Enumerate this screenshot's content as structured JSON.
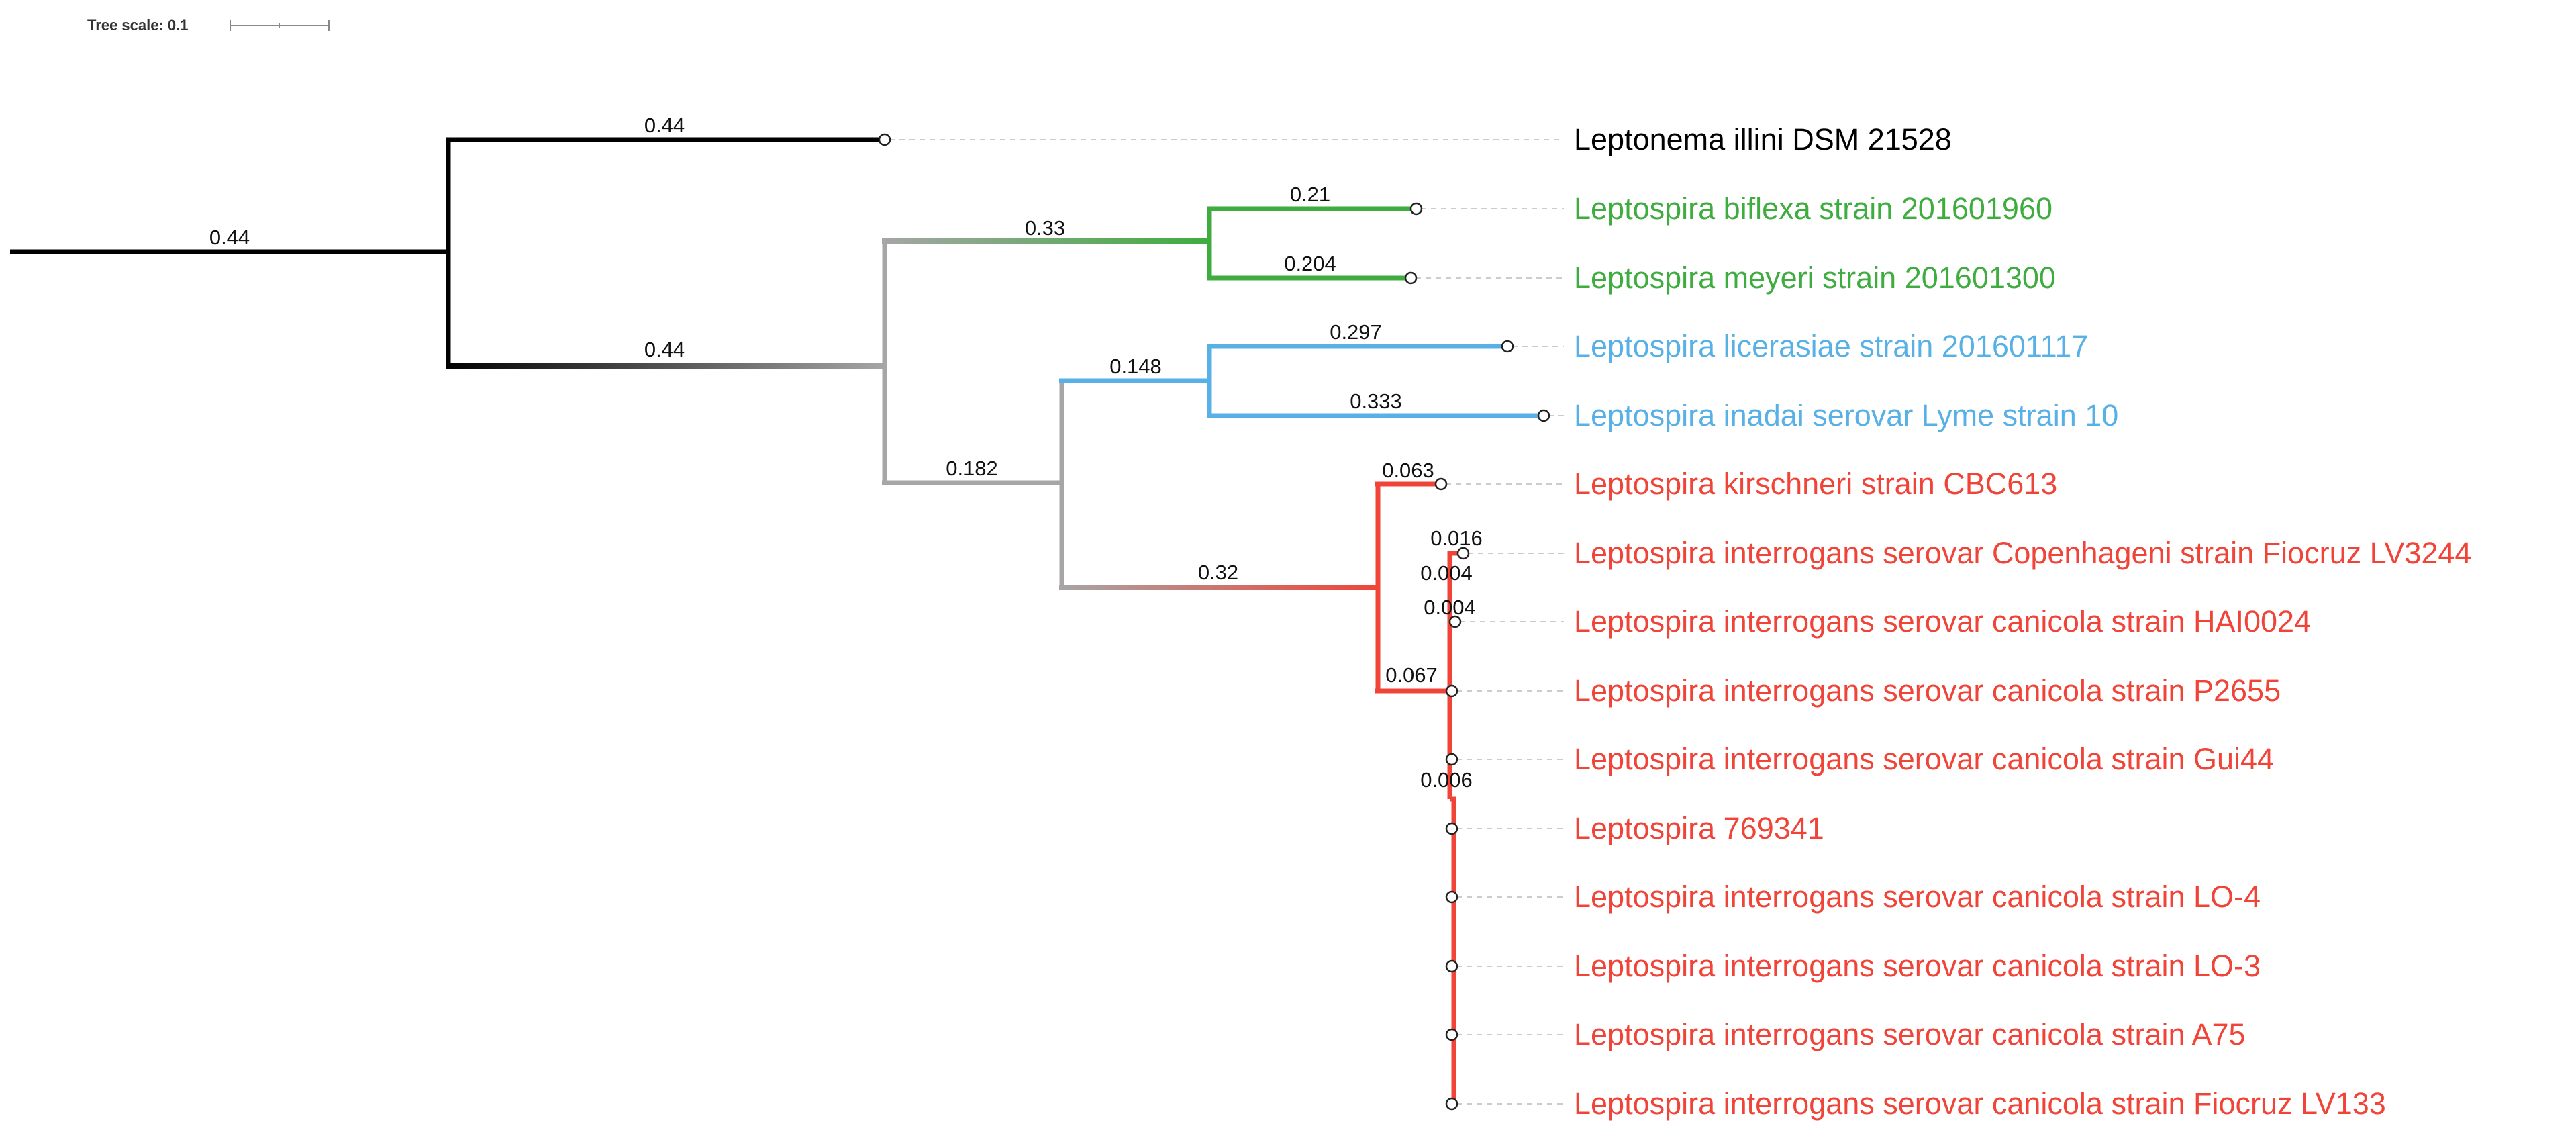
{
  "scale": {
    "label": "Tree scale: 0.1"
  },
  "colors": {
    "outgroup": "#000000",
    "green": "#3eac3e",
    "blue": "#57b0e6",
    "red": "#f04438",
    "gray": "#a6a6a6"
  },
  "branch_labels": {
    "root": "0.44",
    "outgroup": "0.44",
    "ingroup": "0.44",
    "green_clade": "0.33",
    "biflexa": "0.21",
    "meyeri": "0.204",
    "pathogen_clade": "0.182",
    "blue_clade": "0.148",
    "licerasiae": "0.297",
    "inadai": "0.333",
    "red_clade": "0.32",
    "kirschneri": "0.063",
    "interrogans_clade": "0.067",
    "copenhageni": "0.016",
    "inner_a": "0.004",
    "hai0024": "0.004",
    "inner_b": "0.006"
  },
  "leaves": [
    {
      "name": "Leptonema illini DSM 21528",
      "color": "#000000"
    },
    {
      "name": "Leptospira biflexa strain 201601960",
      "color": "#3eac3e"
    },
    {
      "name": "Leptospira meyeri strain 201601300",
      "color": "#3eac3e"
    },
    {
      "name": "Leptospira licerasiae strain 201601117",
      "color": "#57b0e6"
    },
    {
      "name": "Leptospira inadai serovar Lyme strain 10",
      "color": "#57b0e6"
    },
    {
      "name": "Leptospira kirschneri strain CBC613",
      "color": "#f04438"
    },
    {
      "name": "Leptospira interrogans serovar Copenhageni strain Fiocruz LV3244",
      "color": "#f04438"
    },
    {
      "name": "Leptospira interrogans serovar canicola strain HAI0024",
      "color": "#f04438"
    },
    {
      "name": "Leptospira interrogans serovar canicola strain P2655",
      "color": "#f04438"
    },
    {
      "name": "Leptospira interrogans serovar canicola strain Gui44",
      "color": "#f04438"
    },
    {
      "name": "Leptospira 769341",
      "color": "#f04438"
    },
    {
      "name": "Leptospira interrogans serovar canicola strain LO-4",
      "color": "#f04438"
    },
    {
      "name": "Leptospira interrogans serovar canicola strain LO-3",
      "color": "#f04438"
    },
    {
      "name": "Leptospira interrogans serovar canicola strain A75",
      "color": "#f04438"
    },
    {
      "name": "Leptospira interrogans serovar canicola strain Fiocruz LV133",
      "color": "#f04438"
    }
  ]
}
